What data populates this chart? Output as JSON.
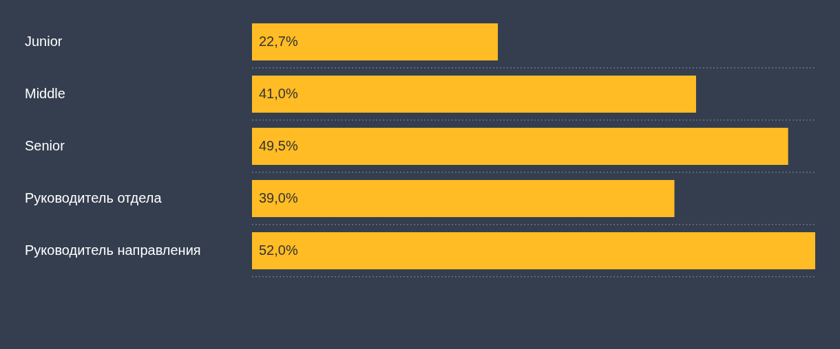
{
  "chart_data": {
    "type": "bar",
    "orientation": "horizontal",
    "categories": [
      "Junior",
      "Middle",
      "Senior",
      "Руководитель отдела",
      "Руководитель направления"
    ],
    "values": [
      22.7,
      41.0,
      49.5,
      39.0,
      52.0
    ],
    "value_labels": [
      "22,7%",
      "41,0%",
      "49,5%",
      "39,0%",
      "52,0%"
    ],
    "color": "#ffbc24",
    "xlim": [
      0,
      52
    ],
    "grid": "y",
    "tick_labels": "y",
    "legend": false
  }
}
